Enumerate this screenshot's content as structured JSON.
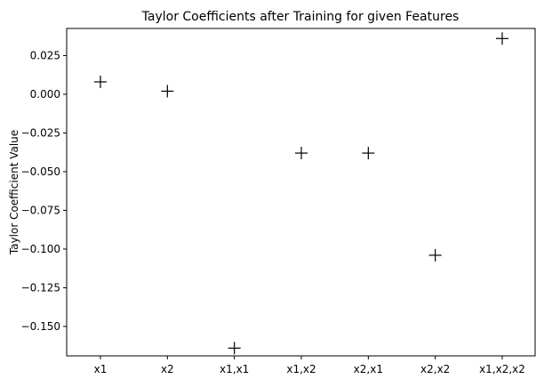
{
  "chart_data": {
    "type": "scatter",
    "title": "Taylor Coefficients after Training for given Features",
    "xlabel": "",
    "ylabel": "Taylor Coefficient Value",
    "categories": [
      "x1",
      "x2",
      "x1,x1",
      "x1,x2",
      "x2,x1",
      "x2,x2",
      "x1,x2,x2"
    ],
    "values": [
      0.008,
      0.002,
      -0.164,
      -0.038,
      -0.038,
      -0.104,
      0.036
    ],
    "marker": "plus",
    "marker_color": "#000000",
    "ylim": [
      -0.169,
      0.0425
    ],
    "yticks": [
      0.025,
      0.0,
      -0.025,
      -0.05,
      -0.075,
      -0.1,
      -0.125,
      -0.15
    ],
    "ytick_labels": [
      "0.025",
      "0.000",
      "−0.025",
      "−0.050",
      "−0.075",
      "−0.100",
      "−0.125",
      "−0.150"
    ],
    "grid": false,
    "legend": "none"
  }
}
